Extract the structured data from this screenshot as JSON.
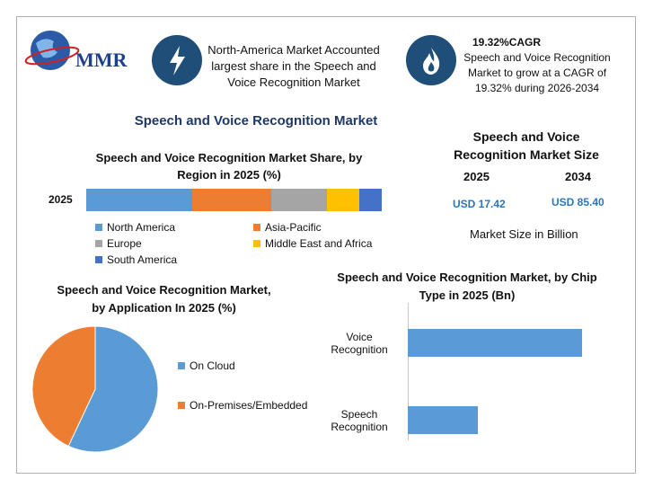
{
  "logo": "MMR",
  "header": {
    "highlight": "North-America Market Accounted largest share in the Speech and Voice Recognition Market",
    "cagr_title": "19.32%CAGR",
    "cagr_text": "Speech and Voice Recognition Market to grow at a CAGR of 19.32% during 2026-2034"
  },
  "title": "Speech and Voice Recognition Market",
  "market_size": {
    "title": "Speech and Voice Recognition Market Size",
    "years": [
      "2025",
      "2034"
    ],
    "values": [
      "USD 17.42",
      "USD 85.40"
    ],
    "note": "Market Size in Billion"
  },
  "chart_data": [
    {
      "type": "stacked_bar",
      "title": "Speech and Voice Recognition Market Share, by Region in 2025 (%)",
      "categories": [
        "2025"
      ],
      "series": [
        {
          "name": "North America",
          "color": "#5b9bd5",
          "values": [
            36
          ]
        },
        {
          "name": "Asia-Pacific",
          "color": "#ed7d31",
          "values": [
            26.5
          ]
        },
        {
          "name": "Europe",
          "color": "#a5a5a5",
          "values": [
            19
          ]
        },
        {
          "name": "Middle East and Africa",
          "color": "#ffc000",
          "values": [
            11
          ]
        },
        {
          "name": "South America",
          "color": "#4472c4",
          "values": [
            7.5
          ]
        }
      ]
    },
    {
      "type": "pie",
      "title": "Speech and Voice Recognition Market, by Application In 2025 (%)",
      "categories": [
        "On Cloud",
        "On-Premises/Embedded"
      ],
      "values": [
        57,
        43
      ],
      "colors": [
        "#5b9bd5",
        "#ed7d31"
      ]
    },
    {
      "type": "bar",
      "title": "Speech and Voice Recognition Market, by Chip Type in 2025 (Bn)",
      "categories": [
        "Voice Recognition",
        "Speech Recognition"
      ],
      "values": [
        12.4,
        5.0
      ],
      "color": "#5b9bd5"
    }
  ]
}
